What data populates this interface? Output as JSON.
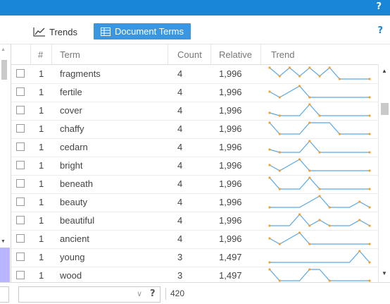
{
  "topbar": {
    "help": "?"
  },
  "toolbar": {
    "tab_trends": "Trends",
    "tab_document_terms": "Document Terms",
    "help": "?"
  },
  "grid": {
    "columns": [
      "#",
      "Term",
      "Count",
      "Relative",
      "Trend"
    ],
    "rows": [
      {
        "num": "1",
        "term": "fragments",
        "count": "4",
        "relative": "1,996",
        "trend": [
          9,
          3,
          9,
          3,
          9,
          3,
          9,
          1,
          1,
          1,
          1
        ]
      },
      {
        "num": "1",
        "term": "fertile",
        "count": "4",
        "relative": "1,996",
        "trend": [
          5,
          1,
          5,
          9,
          1,
          1,
          1,
          1,
          1,
          1,
          1
        ]
      },
      {
        "num": "1",
        "term": "cover",
        "count": "4",
        "relative": "1,996",
        "trend": [
          3,
          1,
          1,
          1,
          9,
          1,
          1,
          1,
          1,
          1,
          1
        ]
      },
      {
        "num": "1",
        "term": "chaffy",
        "count": "4",
        "relative": "1,996",
        "trend": [
          9,
          1,
          1,
          1,
          9,
          9,
          9,
          1,
          1,
          1,
          1
        ]
      },
      {
        "num": "1",
        "term": "cedarn",
        "count": "4",
        "relative": "1,996",
        "trend": [
          3,
          1,
          1,
          1,
          9,
          1,
          1,
          1,
          1,
          1,
          1
        ]
      },
      {
        "num": "1",
        "term": "bright",
        "count": "4",
        "relative": "1,996",
        "trend": [
          5,
          1,
          5,
          9,
          1,
          1,
          1,
          1,
          1,
          1,
          1
        ]
      },
      {
        "num": "1",
        "term": "beneath",
        "count": "4",
        "relative": "1,996",
        "trend": [
          9,
          1,
          1,
          1,
          9,
          1,
          1,
          1,
          1,
          1,
          1
        ]
      },
      {
        "num": "1",
        "term": "beauty",
        "count": "4",
        "relative": "1,996",
        "trend": [
          1,
          1,
          1,
          1,
          5,
          9,
          1,
          1,
          1,
          5,
          1
        ]
      },
      {
        "num": "1",
        "term": "beautiful",
        "count": "4",
        "relative": "1,996",
        "trend": [
          1,
          1,
          1,
          9,
          1,
          5,
          1,
          1,
          1,
          5,
          1
        ]
      },
      {
        "num": "1",
        "term": "ancient",
        "count": "4",
        "relative": "1,996",
        "trend": [
          5,
          1,
          5,
          9,
          1,
          1,
          1,
          1,
          1,
          1,
          1
        ]
      },
      {
        "num": "1",
        "term": "young",
        "count": "3",
        "relative": "1,497",
        "trend": [
          1,
          1,
          1,
          1,
          1,
          1,
          1,
          1,
          1,
          9,
          1
        ]
      },
      {
        "num": "1",
        "term": "wood",
        "count": "3",
        "relative": "1,497",
        "trend": [
          9,
          1,
          1,
          1,
          9,
          9,
          1,
          1,
          1,
          1,
          1
        ]
      }
    ]
  },
  "footer": {
    "help": "?",
    "total": "420"
  },
  "colors": {
    "accent": "#1a86d8",
    "tab_active": "#3a96e0",
    "trend_line": "#5aa8e6",
    "trend_point": "#f0a030"
  }
}
